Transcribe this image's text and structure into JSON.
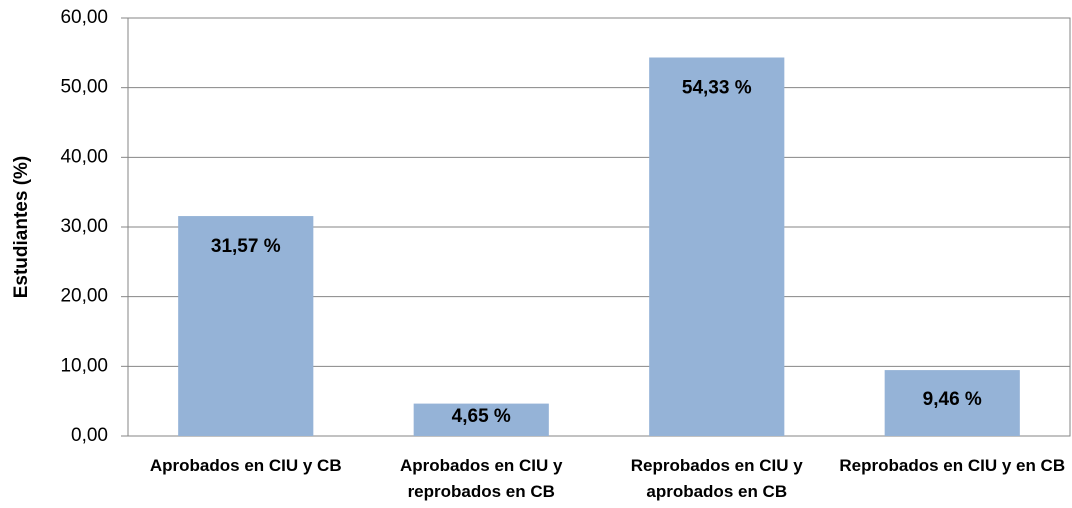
{
  "chart_data": {
    "type": "bar",
    "y_label": "Estudiantes (%)",
    "categories": [
      "Aprobados en CIU y CB",
      "Aprobados en CIU y reprobados en CB",
      "Reprobados en CIU y aprobados en CB",
      "Reprobados en CIU y en CB"
    ],
    "values": [
      31.57,
      4.65,
      54.33,
      9.46
    ],
    "value_labels": [
      "31,57 %",
      "4,65 %",
      "54,33 %",
      "9,46 %"
    ],
    "color": "#95b3d7",
    "ylim": [
      0,
      60
    ],
    "yticks": [
      {
        "value": 0,
        "label": "0,00"
      },
      {
        "value": 10,
        "label": "10,00"
      },
      {
        "value": 20,
        "label": "20,00"
      },
      {
        "value": 30,
        "label": "30,00"
      },
      {
        "value": 40,
        "label": "40,00"
      },
      {
        "value": 50,
        "label": "50,00"
      },
      {
        "value": 60,
        "label": "60,00"
      }
    ],
    "grid": true
  }
}
